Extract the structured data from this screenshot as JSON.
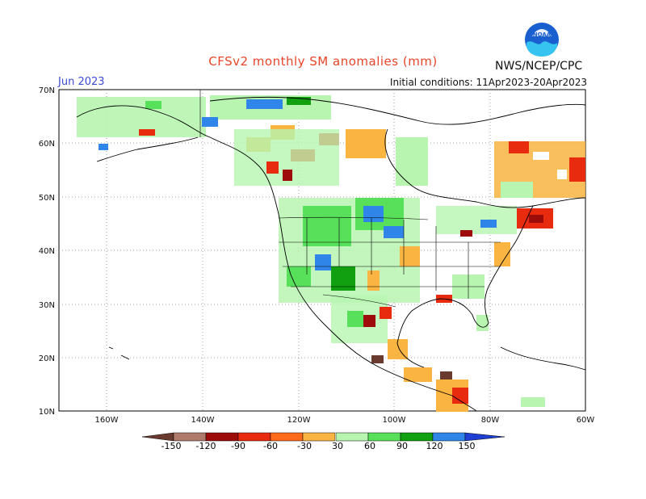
{
  "title": "CFSv2 monthly SM anomalies (mm)",
  "month_label": "Jun 2023",
  "initial_conditions": "Initial conditions: 11Apr2023-20Apr2023",
  "agency": "NWS/NCEP/CPC",
  "logo_text": "NOAA",
  "map": {
    "lon_range": [
      -170,
      -60
    ],
    "lat_range": [
      10,
      70
    ],
    "lon_ticks": [
      "160W",
      "140W",
      "120W",
      "100W",
      "80W",
      "60W"
    ],
    "lat_ticks": [
      "70N",
      "60N",
      "50N",
      "40N",
      "30N",
      "20N",
      "10N"
    ]
  },
  "colorbar": {
    "labels": [
      "-150",
      "-120",
      "-90",
      "-60",
      "-30",
      "30",
      "60",
      "90",
      "120",
      "150"
    ],
    "colors": [
      "#6b3a2e",
      "#b07a6a",
      "#9e0b0b",
      "#e82b0f",
      "#ff6a1a",
      "#f9b441",
      "#ffffff",
      "#b7f5b0",
      "#59e05a",
      "#10a010",
      "#2f86e8",
      "#1f3fd4"
    ]
  }
}
